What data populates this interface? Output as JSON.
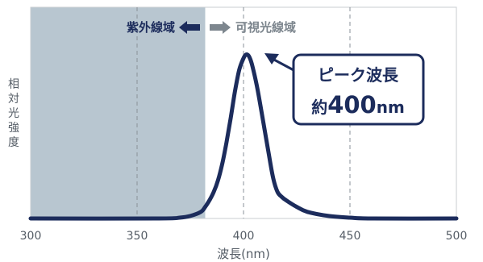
{
  "chart_data": {
    "type": "line",
    "title": "",
    "xlabel": "波長(nm)",
    "ylabel": "相対光強度",
    "xlim": [
      300,
      500
    ],
    "ylim": [
      0,
      1
    ],
    "x_ticks": [
      "300",
      "350",
      "400",
      "450",
      "500"
    ],
    "grid": "vertical dashed at 350, 400, 450",
    "shaded_region": {
      "x_range": [
        300,
        382
      ],
      "color": "#b8c6d0"
    },
    "regions": {
      "uv_label": "紫外線域",
      "visible_label": "可視光線域"
    },
    "annotation": {
      "line1": "ピーク波長",
      "line2_prefix": "約",
      "line2_value": "400",
      "line2_unit": "nm"
    },
    "series": [
      {
        "color": "#1c2c5c",
        "x": [
          300,
          360,
          370,
          375,
          380,
          382,
          384,
          386,
          388,
          390,
          392,
          394,
          396,
          398,
          400,
          401,
          402,
          403,
          404,
          406,
          408,
          410,
          412,
          414,
          416,
          418,
          420,
          425,
          430,
          440,
          450,
          460,
          500
        ],
        "y": [
          0.0,
          0.0,
          0.005,
          0.015,
          0.04,
          0.07,
          0.11,
          0.16,
          0.23,
          0.33,
          0.46,
          0.61,
          0.77,
          0.9,
          0.97,
          0.99,
          0.99,
          0.97,
          0.93,
          0.82,
          0.68,
          0.53,
          0.38,
          0.24,
          0.16,
          0.13,
          0.11,
          0.07,
          0.04,
          0.015,
          0.005,
          0.0,
          0.0
        ]
      }
    ]
  }
}
